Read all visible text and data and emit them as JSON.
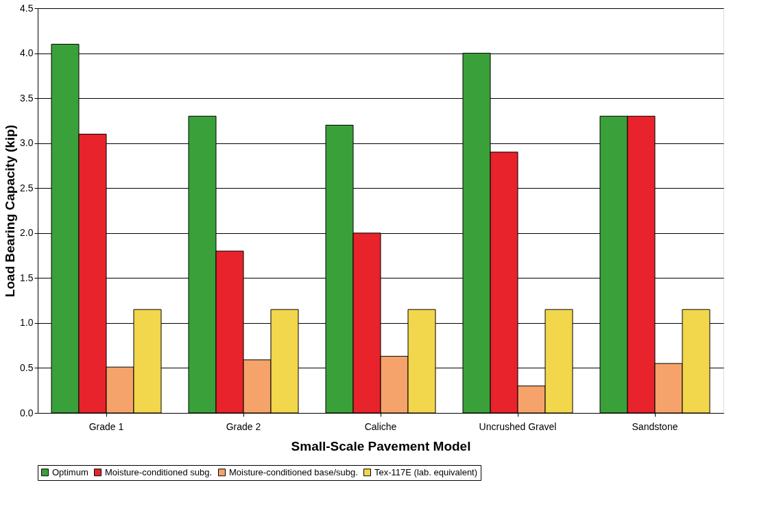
{
  "chart_data": {
    "type": "bar",
    "xlabel": "Small-Scale Pavement Model",
    "ylabel": "Load Bearing Capacity (kip)",
    "categories": [
      "Grade 1",
      "Grade 2",
      "Caliche",
      "Uncrushed Gravel",
      "Sandstone"
    ],
    "series": [
      {
        "name": "Optimum",
        "color": "#3aa03a",
        "values": [
          4.1,
          3.3,
          3.2,
          4.0,
          3.3
        ]
      },
      {
        "name": "Moisture-conditioned subg.",
        "color": "#e8232b",
        "values": [
          3.1,
          1.8,
          2.0,
          2.9,
          3.3
        ]
      },
      {
        "name": "Moisture-conditioned base/subg.",
        "color": "#f5a36a",
        "values": [
          0.51,
          0.59,
          0.63,
          0.3,
          0.55
        ]
      },
      {
        "name": "Tex-117E (lab. equivalent)",
        "color": "#f2d64b",
        "values": [
          1.15,
          1.15,
          1.15,
          1.15,
          1.15
        ]
      }
    ],
    "ylim": [
      0,
      4.5
    ],
    "yticks": [
      {
        "value": 0,
        "label": "0.0"
      },
      {
        "value": 0.5,
        "label": "0.5"
      },
      {
        "value": 1,
        "label": "1.0"
      },
      {
        "value": 1.5,
        "label": "1.5"
      },
      {
        "value": 2,
        "label": "2.0"
      },
      {
        "value": 2.5,
        "label": "2.5"
      },
      {
        "value": 3,
        "label": "3.0"
      },
      {
        "value": 3.5,
        "label": "3.5"
      },
      {
        "value": 4,
        "label": "4.0"
      },
      {
        "value": 4.5,
        "label": "4.5"
      }
    ],
    "grid": "y",
    "legend": "bottom"
  }
}
